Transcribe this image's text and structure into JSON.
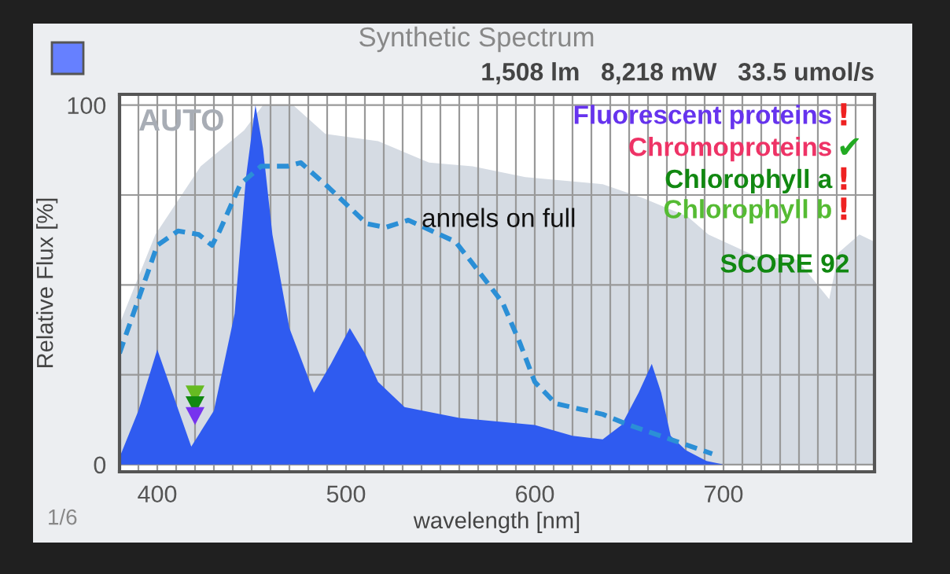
{
  "chart_data": {
    "type": "area",
    "title": "Synthetic Spectrum",
    "subtitle": "1,508 lm   8,218 mW   33.5 umol/s",
    "xlabel": "wavelength [nm]",
    "ylabel": "Relative Flux [%]",
    "annotations": [
      "AUTO",
      "Fluorescent proteins !",
      "Chromoproteins ✔",
      "Chlorophyll a !",
      "Chlorophyll b !",
      "SCORE 92",
      {
        "text": "annels on full",
        "x": 540,
        "y": 68
      },
      "1/6"
    ],
    "series": [
      {
        "color": "#d5dbe3",
        "x": [
          380,
          383,
          399,
          423,
          446,
          456,
          472,
          489,
          517,
          544,
          567,
          595,
          636,
          658,
          681,
          692,
          717,
          739,
          756,
          761,
          772,
          780
        ],
        "values": [
          39,
          43,
          64,
          83,
          93,
          100,
          100,
          92,
          90,
          84,
          83,
          80,
          78,
          74,
          69,
          64,
          58,
          57,
          46,
          59,
          64,
          62
        ]
      },
      {
        "color": "#2f5bf0",
        "x": [
          380,
          390,
          400,
          410,
          418,
          430,
          441,
          447,
          452,
          456,
          461,
          470,
          483,
          492,
          502,
          510,
          517,
          531,
          560,
          600,
          620,
          636,
          646,
          655,
          662,
          667,
          672,
          680,
          691,
          700
        ],
        "values": [
          2,
          15,
          32,
          17,
          5,
          15,
          42,
          80,
          100,
          88,
          64,
          38,
          20,
          28,
          38,
          31,
          23,
          16,
          13,
          11,
          8,
          7,
          11,
          20,
          28,
          20,
          8,
          4,
          1,
          0
        ]
      },
      {
        "type": "line",
        "color": "#2b8fd6",
        "x": [
          380,
          394,
          400,
          411,
          422,
          429,
          433,
          444,
          455,
          469,
          476,
          491,
          511,
          521,
          533,
          558,
          567,
          583,
          592,
          600,
          611,
          636,
          650,
          672,
          694
        ],
        "values": [
          31,
          52,
          61,
          65,
          64,
          61,
          65,
          78,
          83,
          83,
          84,
          77,
          67,
          66,
          68,
          62,
          56,
          45,
          34,
          23,
          17,
          14,
          11,
          7,
          3
        ]
      }
    ],
    "line_style": "dashed",
    "xlim": [
      380,
      780
    ],
    "ylim": [
      -2,
      103
    ],
    "xticks": [
      {
        "value": 390,
        "label": null
      },
      400,
      {
        "value": 410,
        "label": null
      },
      {
        "value": 420,
        "label": null
      },
      {
        "value": 430,
        "label": null
      },
      {
        "value": 440,
        "label": null
      },
      {
        "value": 450,
        "label": null
      },
      {
        "value": 460,
        "label": null
      },
      {
        "value": 470,
        "label": null
      },
      {
        "value": 480,
        "label": null
      },
      {
        "value": 490,
        "label": null
      },
      500,
      {
        "value": 510,
        "label": null
      },
      {
        "value": 520,
        "label": null
      },
      {
        "value": 530,
        "label": null
      },
      {
        "value": 540,
        "label": null
      },
      {
        "value": 550,
        "label": null
      },
      {
        "value": 560,
        "label": null
      },
      {
        "value": 570,
        "label": null
      },
      {
        "value": 580,
        "label": null
      },
      {
        "value": 590,
        "label": null
      },
      600,
      {
        "value": 610,
        "label": null
      },
      {
        "value": 620,
        "label": null
      },
      {
        "value": 630,
        "label": null
      },
      {
        "value": 640,
        "label": null
      },
      {
        "value": 650,
        "label": null
      },
      {
        "value": 660,
        "label": null
      },
      {
        "value": 670,
        "label": null
      },
      {
        "value": 680,
        "label": null
      },
      {
        "value": 690,
        "label": null
      },
      700,
      {
        "value": 710,
        "label": null
      },
      {
        "value": 720,
        "label": null
      },
      {
        "value": 730,
        "label": null
      },
      {
        "value": 740,
        "label": null
      },
      {
        "value": 750,
        "label": null
      },
      {
        "value": 760,
        "label": null
      },
      {
        "value": 770,
        "label": null
      }
    ],
    "yticks": [
      0,
      {
        "value": 25,
        "label": null
      },
      {
        "value": 50,
        "label": null
      },
      {
        "value": 75,
        "label": null
      },
      100
    ],
    "grid": true
  }
}
